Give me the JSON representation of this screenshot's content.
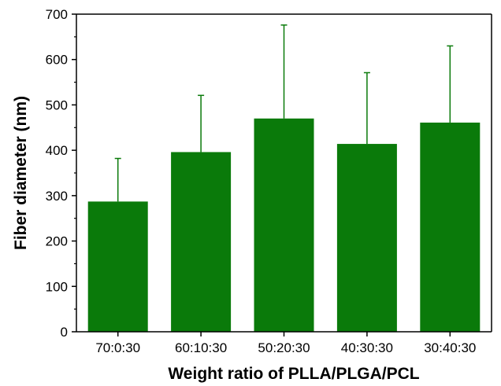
{
  "chart_data": {
    "type": "bar",
    "title": "",
    "xlabel": "Weight ratio of PLLA/PLGA/PCL",
    "ylabel": "Fiber diameter (nm)",
    "categories": [
      "70:0:30",
      "60:10:30",
      "50:20:30",
      "40:30:30",
      "30:40:30"
    ],
    "values": [
      287,
      396,
      470,
      414,
      461
    ],
    "error_upper": [
      95,
      125,
      206,
      157,
      169
    ],
    "ylim": [
      0,
      700
    ],
    "yticks": [
      0,
      100,
      200,
      300,
      400,
      500,
      600,
      700
    ],
    "grid": false,
    "legend": "none",
    "bar_color": "#0a7a0a",
    "error_color": "#0a7a0a"
  }
}
